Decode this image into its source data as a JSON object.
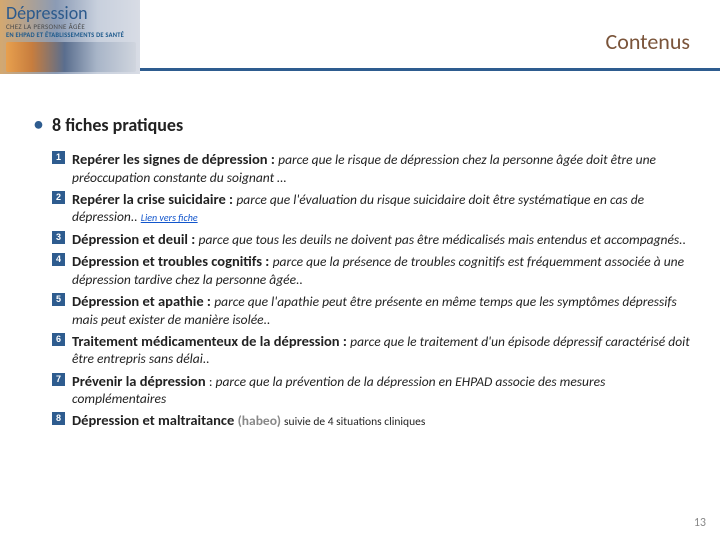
{
  "header": {
    "logo_title": "Dépression",
    "logo_sub1": "CHEZ LA PERSONNE ÂGÉE",
    "logo_sub2": "EN EHPAD ET ÉTABLISSEMENTS DE SANTÉ",
    "page_title": "Contenus"
  },
  "section_heading": "8 fiches pratiques",
  "items": [
    {
      "num": "1",
      "title": "Repérer les signes de dépression : ",
      "body": "parce que le risque de dépression chez la personne âgée doit être une préoccupation constante du soignant …"
    },
    {
      "num": "2",
      "title": "Repérer la crise suicidaire : ",
      "body": "parce que l'évaluation du risque suicidaire doit être systématique en cas de dépression.. ",
      "link": "Lien vers fiche"
    },
    {
      "num": "3",
      "title": "Dépression et deuil : ",
      "body": "parce que tous les deuils ne doivent pas être médicalisés mais entendus et accompagnés.."
    },
    {
      "num": "4",
      "title": "Dépression et troubles cognitifs : ",
      "body": "parce que la présence de troubles cognitifs est fréquemment associée à une dépression tardive chez la personne âgée.."
    },
    {
      "num": "5",
      "title": "Dépression et apathie : ",
      "body": "parce que l'apathie peut être présente en même temps que les symptômes dépressifs mais peut exister de manière isolée.."
    },
    {
      "num": "6",
      "title": "Traitement médicamenteux de la dépression : ",
      "body": "parce que le traitement d'un épisode dépressif caractérisé doit être entrepris sans délai.."
    },
    {
      "num": "7",
      "title": "Prévenir la dépression ",
      "body_lead": ": ",
      "body": "parce que la prévention de la dépression en EHPAD associe des mesures complémentaires"
    },
    {
      "num": "8",
      "title": "Dépression et maltraitance ",
      "habeo": "(habeo) ",
      "trail": "suivie de 4 situations cliniques"
    }
  ],
  "page_number": "13",
  "colors": {
    "accent": "#2e5c8f",
    "title_color": "#7a543a",
    "link_color": "#1155cc",
    "muted": "#888888"
  }
}
